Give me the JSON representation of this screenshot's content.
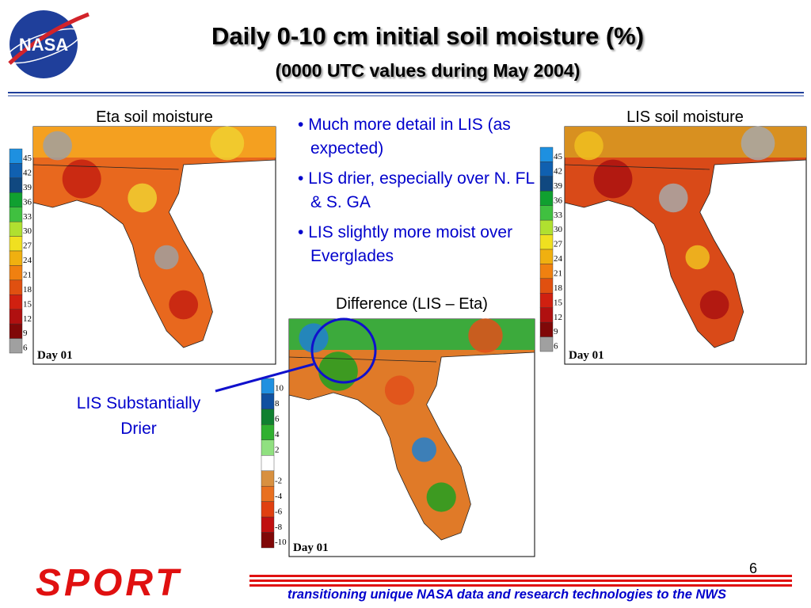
{
  "header": {
    "logo": "NASA",
    "title": "Daily 0-10 cm initial soil moisture (%)",
    "subtitle": "(0000 UTC values during May 2004)"
  },
  "panels": [
    {
      "label": "Eta soil moisture",
      "colorbar": [
        45,
        42,
        39,
        36,
        33,
        30,
        27,
        24,
        21,
        18,
        15,
        12,
        9,
        6
      ],
      "day": "Day 01"
    },
    {
      "label": "LIS soil moisture",
      "colorbar": [
        45,
        42,
        39,
        36,
        33,
        30,
        27,
        24,
        21,
        18,
        15,
        12,
        9,
        6
      ],
      "day": "Day 01"
    },
    {
      "label": "Difference (LIS – Eta)",
      "colorbar": [
        10,
        8,
        6,
        4,
        2,
        -2,
        -4,
        -6,
        -8,
        -10
      ],
      "day": "Day 01"
    }
  ],
  "bullets": [
    "Much more detail in LIS (as expected)",
    "LIS drier, especially over N. FL & S. GA",
    "LIS slightly more moist over Everglades"
  ],
  "annotation": [
    "LIS Substantially",
    "Drier"
  ],
  "page_number": "6",
  "footer": {
    "logo": "SPORT",
    "tagline": "transitioning unique NASA data and research technologies to the NWS"
  }
}
